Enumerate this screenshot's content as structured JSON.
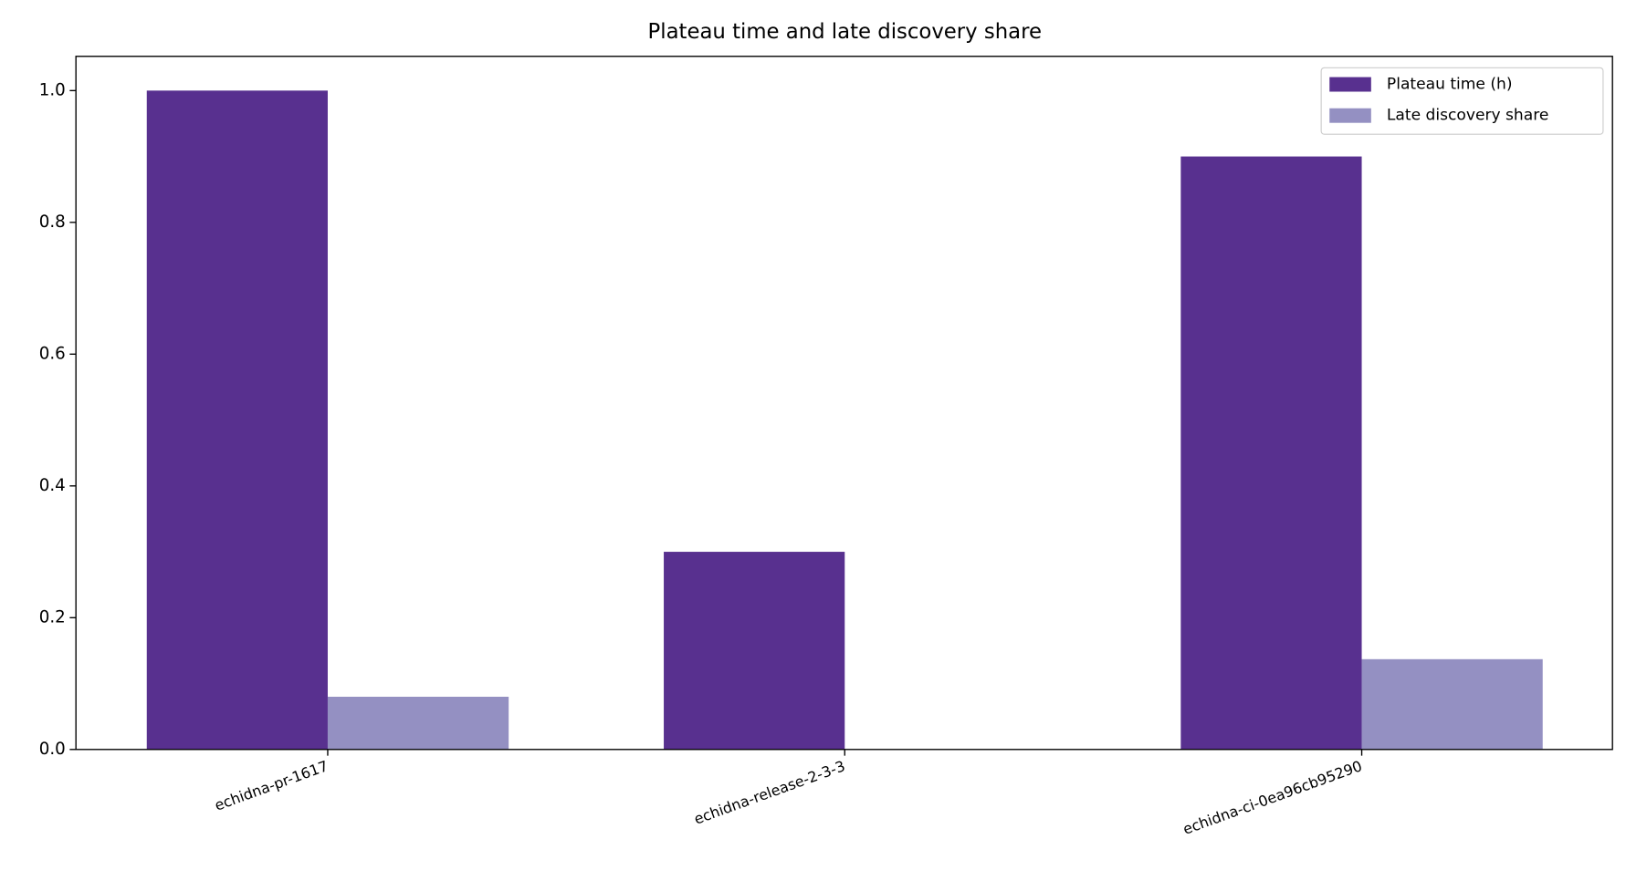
{
  "chart_data": {
    "type": "bar",
    "title": "Plateau time and late discovery share",
    "categories": [
      "echidna-pr-1617",
      "echidna-release-2-3-3",
      "echidna-ci-0ea96cb95290"
    ],
    "series": [
      {
        "name": "Plateau time (h)",
        "color": "#58308f",
        "values": [
          1.0,
          0.3,
          0.9
        ]
      },
      {
        "name": "Late discovery share",
        "color": "#9490c2",
        "values": [
          0.08,
          0,
          0.137
        ]
      }
    ],
    "ylim": [
      0,
      1.052
    ],
    "yticks": [
      {
        "value": 0,
        "label": "0.0"
      },
      0.2,
      0.4,
      0.6,
      0.8,
      {
        "value": 1,
        "label": "1.0"
      }
    ],
    "legend": "upper right"
  }
}
